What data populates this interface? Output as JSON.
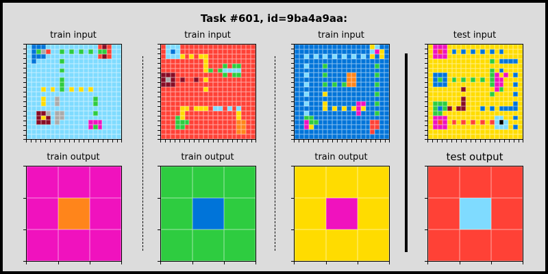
{
  "title": "Task #601, id=9ba4a9aa:",
  "palette": {
    "0": "#000000",
    "1": "#0074D9",
    "2": "#FF4136",
    "3": "#2ECC40",
    "4": "#FFDC00",
    "5": "#AAAAAA",
    "6": "#F012BE",
    "7": "#FF851B",
    "8": "#7FDBFF",
    "9": "#870C25"
  },
  "panels": [
    {
      "label": "train input",
      "size": 20,
      "background": 8,
      "cells": [
        [
          1,
          0,
          1
        ],
        [
          2,
          0,
          1
        ],
        [
          3,
          0,
          1
        ],
        [
          1,
          1,
          1
        ],
        [
          1,
          2,
          1
        ],
        [
          2,
          2,
          1
        ],
        [
          3,
          2,
          1
        ],
        [
          2,
          1,
          3
        ],
        [
          3,
          1,
          5
        ],
        [
          1,
          3,
          1
        ],
        [
          4,
          1,
          2
        ],
        [
          7,
          1,
          3
        ],
        [
          9,
          1,
          3
        ],
        [
          11,
          1,
          3
        ],
        [
          13,
          1,
          3
        ],
        [
          15,
          1,
          3
        ],
        [
          16,
          1,
          3
        ],
        [
          17,
          1,
          2
        ],
        [
          16,
          0,
          9
        ],
        [
          17,
          0,
          2
        ],
        [
          16,
          2,
          9
        ],
        [
          17,
          2,
          2
        ],
        [
          15,
          2,
          2
        ],
        [
          15,
          0,
          2
        ],
        [
          7,
          3,
          3
        ],
        [
          7,
          5,
          3
        ],
        [
          7,
          7,
          3
        ],
        [
          7,
          8,
          3
        ],
        [
          7,
          9,
          3
        ],
        [
          3,
          9,
          4
        ],
        [
          5,
          9,
          4
        ],
        [
          9,
          9,
          4
        ],
        [
          11,
          9,
          4
        ],
        [
          13,
          9,
          4
        ],
        [
          3,
          11,
          4
        ],
        [
          3,
          12,
          4
        ],
        [
          6,
          11,
          5
        ],
        [
          6,
          12,
          5
        ],
        [
          14,
          11,
          3
        ],
        [
          14,
          12,
          3
        ],
        [
          14,
          14,
          3
        ],
        [
          2,
          14,
          9
        ],
        [
          3,
          14,
          9
        ],
        [
          2,
          15,
          9
        ],
        [
          4,
          15,
          9
        ],
        [
          2,
          16,
          9
        ],
        [
          3,
          16,
          9
        ],
        [
          4,
          16,
          9
        ],
        [
          3,
          15,
          4
        ],
        [
          4,
          14,
          5
        ],
        [
          6,
          14,
          5
        ],
        [
          7,
          14,
          5
        ],
        [
          6,
          15,
          5
        ],
        [
          7,
          15,
          5
        ],
        [
          6,
          16,
          5
        ],
        [
          13,
          16,
          6
        ],
        [
          14,
          16,
          6
        ],
        [
          15,
          16,
          6
        ],
        [
          13,
          17,
          6
        ],
        [
          15,
          17,
          6
        ],
        [
          14,
          17,
          3
        ]
      ]
    },
    {
      "label": "train input",
      "size": 20,
      "background": 2,
      "cells": [
        [
          1,
          0,
          8
        ],
        [
          2,
          0,
          8
        ],
        [
          3,
          0,
          8
        ],
        [
          1,
          1,
          8
        ],
        [
          2,
          1,
          1
        ],
        [
          3,
          1,
          8
        ],
        [
          1,
          2,
          8
        ],
        [
          2,
          2,
          8
        ],
        [
          3,
          2,
          8
        ],
        [
          4,
          2,
          4
        ],
        [
          6,
          2,
          4
        ],
        [
          8,
          2,
          4
        ],
        [
          9,
          2,
          4
        ],
        [
          9,
          3,
          4
        ],
        [
          9,
          4,
          4
        ],
        [
          9,
          5,
          4
        ],
        [
          9,
          7,
          4
        ],
        [
          9,
          9,
          4
        ],
        [
          10,
          5,
          3
        ],
        [
          12,
          5,
          3
        ],
        [
          13,
          5,
          8
        ],
        [
          14,
          5,
          8
        ],
        [
          15,
          5,
          8
        ],
        [
          16,
          5,
          8
        ],
        [
          13,
          4,
          3
        ],
        [
          16,
          4,
          3
        ],
        [
          13,
          6,
          3
        ],
        [
          16,
          6,
          3
        ],
        [
          15,
          4,
          3
        ],
        [
          15,
          6,
          3
        ],
        [
          0,
          6,
          9
        ],
        [
          1,
          6,
          9
        ],
        [
          2,
          6,
          9
        ],
        [
          0,
          7,
          9
        ],
        [
          1,
          7,
          5
        ],
        [
          2,
          7,
          9
        ],
        [
          0,
          8,
          9
        ],
        [
          1,
          8,
          9
        ],
        [
          2,
          8,
          9
        ],
        [
          4,
          7,
          9
        ],
        [
          7,
          7,
          9
        ],
        [
          4,
          13,
          4
        ],
        [
          5,
          13,
          4
        ],
        [
          7,
          13,
          4
        ],
        [
          8,
          13,
          4
        ],
        [
          9,
          13,
          4
        ],
        [
          11,
          13,
          8
        ],
        [
          12,
          13,
          8
        ],
        [
          14,
          13,
          8
        ],
        [
          16,
          13,
          8
        ],
        [
          4,
          14,
          4
        ],
        [
          4,
          15,
          4
        ],
        [
          3,
          15,
          3
        ],
        [
          4,
          16,
          3
        ],
        [
          3,
          16,
          3
        ],
        [
          3,
          17,
          3
        ],
        [
          4,
          17,
          3
        ],
        [
          5,
          16,
          3
        ],
        [
          16,
          15,
          4
        ],
        [
          16,
          16,
          7
        ],
        [
          17,
          16,
          7
        ],
        [
          16,
          17,
          7
        ],
        [
          17,
          17,
          7
        ],
        [
          16,
          18,
          7
        ],
        [
          17,
          18,
          7
        ],
        [
          16,
          14,
          4
        ]
      ]
    },
    {
      "label": "train input",
      "size": 20,
      "background": 1,
      "cells": [
        [
          2,
          2,
          8
        ],
        [
          2,
          4,
          8
        ],
        [
          2,
          6,
          8
        ],
        [
          2,
          8,
          8
        ],
        [
          2,
          10,
          8
        ],
        [
          2,
          12,
          8
        ],
        [
          2,
          14,
          8
        ],
        [
          2,
          16,
          8
        ],
        [
          4,
          2,
          8
        ],
        [
          6,
          2,
          8
        ],
        [
          8,
          2,
          8
        ],
        [
          10,
          2,
          8
        ],
        [
          12,
          2,
          8
        ],
        [
          14,
          2,
          8
        ],
        [
          16,
          2,
          8
        ],
        [
          16,
          0,
          4
        ],
        [
          17,
          0,
          8
        ],
        [
          16,
          1,
          8
        ],
        [
          17,
          1,
          6
        ],
        [
          18,
          1,
          4
        ],
        [
          16,
          2,
          4
        ],
        [
          18,
          2,
          4
        ],
        [
          17,
          4,
          3
        ],
        [
          17,
          6,
          3
        ],
        [
          17,
          8,
          3
        ],
        [
          17,
          10,
          3
        ],
        [
          17,
          12,
          3
        ],
        [
          17,
          14,
          3
        ],
        [
          6,
          4,
          3
        ],
        [
          6,
          6,
          3
        ],
        [
          6,
          8,
          3
        ],
        [
          8,
          8,
          3
        ],
        [
          10,
          8,
          3
        ],
        [
          11,
          6,
          7
        ],
        [
          12,
          6,
          7
        ],
        [
          11,
          7,
          7
        ],
        [
          12,
          7,
          7
        ],
        [
          11,
          8,
          7
        ],
        [
          12,
          8,
          7
        ],
        [
          6,
          10,
          4
        ],
        [
          6,
          12,
          4
        ],
        [
          6,
          13,
          4
        ],
        [
          8,
          13,
          4
        ],
        [
          10,
          13,
          4
        ],
        [
          12,
          13,
          4
        ],
        [
          13,
          12,
          6
        ],
        [
          14,
          12,
          6
        ],
        [
          13,
          13,
          6
        ],
        [
          14,
          13,
          4
        ],
        [
          13,
          14,
          6
        ],
        [
          2,
          15,
          3
        ],
        [
          3,
          15,
          3
        ],
        [
          2,
          16,
          6
        ],
        [
          3,
          16,
          3
        ],
        [
          4,
          16,
          3
        ],
        [
          2,
          17,
          6
        ],
        [
          3,
          17,
          4
        ],
        [
          16,
          16,
          2
        ],
        [
          17,
          16,
          2
        ],
        [
          16,
          17,
          2
        ],
        [
          17,
          17,
          2
        ],
        [
          16,
          18,
          2
        ]
      ]
    },
    {
      "label": "test input",
      "size": 20,
      "background": 4,
      "cells": [
        [
          1,
          0,
          6
        ],
        [
          2,
          0,
          6
        ],
        [
          3,
          0,
          6
        ],
        [
          1,
          1,
          6
        ],
        [
          2,
          1,
          2
        ],
        [
          3,
          1,
          6
        ],
        [
          1,
          2,
          6
        ],
        [
          2,
          2,
          6
        ],
        [
          3,
          2,
          6
        ],
        [
          5,
          1,
          1
        ],
        [
          7,
          1,
          1
        ],
        [
          9,
          1,
          1
        ],
        [
          11,
          1,
          1
        ],
        [
          13,
          1,
          1
        ],
        [
          15,
          1,
          1
        ],
        [
          15,
          3,
          1
        ],
        [
          15,
          5,
          1
        ],
        [
          15,
          7,
          1
        ],
        [
          16,
          3,
          1
        ],
        [
          17,
          3,
          1
        ],
        [
          18,
          3,
          1
        ],
        [
          13,
          3,
          3
        ],
        [
          13,
          5,
          3
        ],
        [
          13,
          6,
          3
        ],
        [
          13,
          8,
          3
        ],
        [
          13,
          10,
          3
        ],
        [
          1,
          6,
          1
        ],
        [
          2,
          6,
          1
        ],
        [
          3,
          6,
          1
        ],
        [
          1,
          7,
          1
        ],
        [
          2,
          7,
          3
        ],
        [
          3,
          7,
          1
        ],
        [
          1,
          8,
          1
        ],
        [
          2,
          8,
          1
        ],
        [
          3,
          8,
          1
        ],
        [
          5,
          7,
          3
        ],
        [
          7,
          7,
          3
        ],
        [
          9,
          7,
          3
        ],
        [
          11,
          7,
          3
        ],
        [
          13,
          7,
          3
        ],
        [
          14,
          7,
          6
        ],
        [
          15,
          7,
          6
        ],
        [
          14,
          8,
          6
        ],
        [
          15,
          8,
          6
        ],
        [
          14,
          9,
          6
        ],
        [
          15,
          9,
          3
        ],
        [
          14,
          6,
          6
        ],
        [
          16,
          6,
          6
        ],
        [
          18,
          6,
          1
        ],
        [
          18,
          8,
          1
        ],
        [
          18,
          10,
          1
        ],
        [
          18,
          12,
          1
        ],
        [
          7,
          9,
          9
        ],
        [
          7,
          11,
          9
        ],
        [
          7,
          12,
          9
        ],
        [
          7,
          13,
          9
        ],
        [
          1,
          12,
          3
        ],
        [
          2,
          12,
          3
        ],
        [
          3,
          12,
          3
        ],
        [
          1,
          13,
          3
        ],
        [
          2,
          13,
          1
        ],
        [
          3,
          13,
          3
        ],
        [
          1,
          14,
          3
        ],
        [
          2,
          14,
          3
        ],
        [
          4,
          13,
          9
        ],
        [
          6,
          13,
          9
        ],
        [
          11,
          13,
          1
        ],
        [
          13,
          13,
          1
        ],
        [
          15,
          13,
          1
        ],
        [
          16,
          13,
          1
        ],
        [
          17,
          13,
          1
        ],
        [
          18,
          13,
          1
        ],
        [
          1,
          15,
          6
        ],
        [
          2,
          15,
          6
        ],
        [
          3,
          15,
          6
        ],
        [
          1,
          16,
          6
        ],
        [
          2,
          16,
          2
        ],
        [
          3,
          16,
          6
        ],
        [
          1,
          17,
          6
        ],
        [
          2,
          17,
          6
        ],
        [
          3,
          17,
          6
        ],
        [
          5,
          16,
          2
        ],
        [
          7,
          16,
          2
        ],
        [
          9,
          16,
          2
        ],
        [
          11,
          16,
          2
        ],
        [
          13,
          16,
          2
        ],
        [
          14,
          15,
          8
        ],
        [
          15,
          15,
          8
        ],
        [
          14,
          16,
          8
        ],
        [
          15,
          16,
          0
        ],
        [
          16,
          16,
          8
        ],
        [
          14,
          17,
          8
        ],
        [
          15,
          17,
          8
        ],
        [
          16,
          17,
          8
        ],
        [
          18,
          15,
          1
        ],
        [
          18,
          17,
          1
        ]
      ]
    },
    {
      "label": "train output",
      "size": 3,
      "background": 6,
      "cells": [
        [
          1,
          1,
          7
        ]
      ]
    },
    {
      "label": "train output",
      "size": 3,
      "background": 3,
      "cells": [
        [
          1,
          1,
          1
        ]
      ]
    },
    {
      "label": "train output",
      "size": 3,
      "background": 4,
      "cells": [
        [
          1,
          1,
          6
        ]
      ]
    },
    {
      "label": "test output",
      "size": 3,
      "background": 2,
      "cells": [
        [
          1,
          1,
          8
        ]
      ]
    }
  ]
}
